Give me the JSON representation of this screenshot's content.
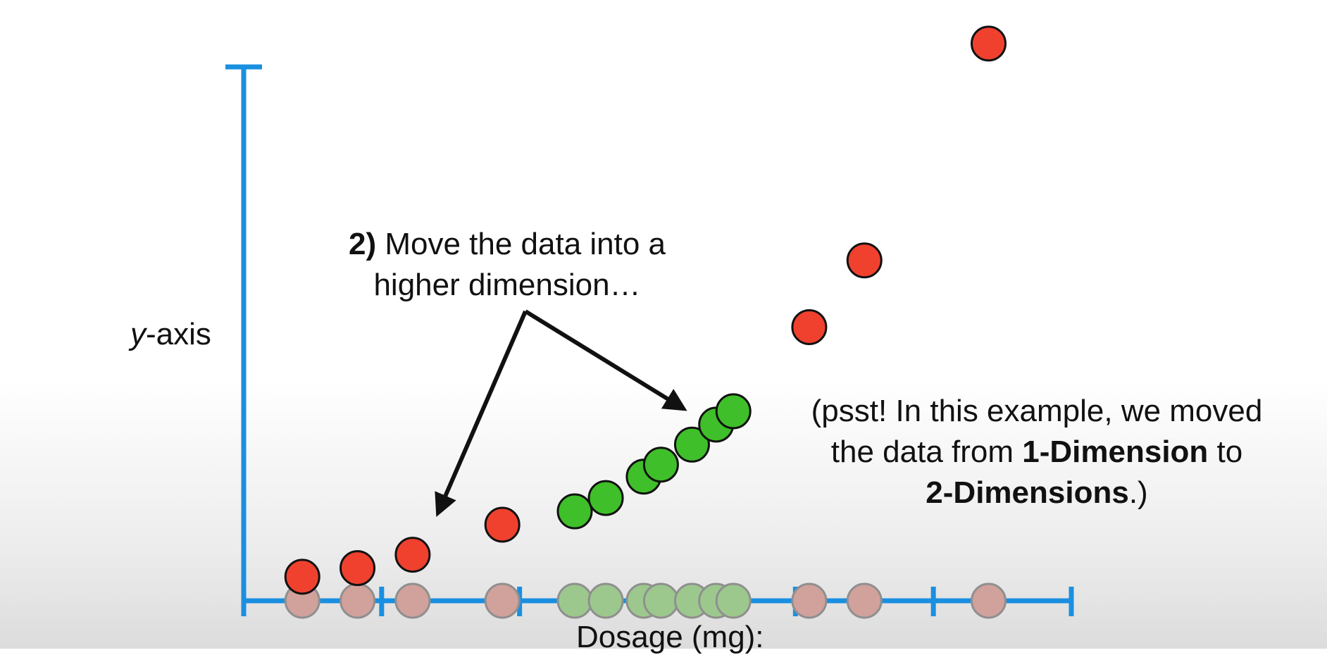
{
  "y_axis_label": {
    "italic_part": "y",
    "rest": "-axis"
  },
  "x_axis_label": "Dosage (mg):",
  "callout": {
    "number": "2)",
    "line1_rest": " Move the data into a",
    "line2": "higher dimension…"
  },
  "note": {
    "line1": "(psst! In this example, we moved",
    "line2_pre": "the data from ",
    "line2_bold": "1-Dimension",
    "line2_post": " to",
    "line3_bold": "2-Dimensions",
    "line3_post": ".)"
  },
  "colors": {
    "axis": "#1a8fe0",
    "red": "#f0412f",
    "green": "#3fbf29",
    "faded_red": "#d1a19b",
    "faded_green": "#9cc88d",
    "outline": "#111111"
  },
  "chart_data": {
    "type": "scatter",
    "title": "",
    "xlabel": "Dosage (mg):",
    "ylabel": "y-axis",
    "ticks": [
      0,
      2,
      4,
      6,
      8,
      10,
      12
    ],
    "xlim": [
      0,
      12
    ],
    "ylim": [
      0,
      8
    ],
    "one_d_points": [
      {
        "x": 0.85,
        "group": "red"
      },
      {
        "x": 1.65,
        "group": "red"
      },
      {
        "x": 2.45,
        "group": "red"
      },
      {
        "x": 3.75,
        "group": "red"
      },
      {
        "x": 4.8,
        "group": "green"
      },
      {
        "x": 5.25,
        "group": "green"
      },
      {
        "x": 5.8,
        "group": "green"
      },
      {
        "x": 6.05,
        "group": "green"
      },
      {
        "x": 6.5,
        "group": "green"
      },
      {
        "x": 6.85,
        "group": "green"
      },
      {
        "x": 7.1,
        "group": "green"
      },
      {
        "x": 8.2,
        "group": "red"
      },
      {
        "x": 9.0,
        "group": "red"
      },
      {
        "x": 10.8,
        "group": "red"
      }
    ],
    "two_d_points": [
      {
        "x": 0.85,
        "y": 0.36,
        "group": "red"
      },
      {
        "x": 1.65,
        "y": 0.49,
        "group": "red"
      },
      {
        "x": 2.45,
        "y": 0.69,
        "group": "red"
      },
      {
        "x": 3.75,
        "y": 1.14,
        "group": "red"
      },
      {
        "x": 4.8,
        "y": 1.34,
        "group": "green"
      },
      {
        "x": 5.25,
        "y": 1.54,
        "group": "green"
      },
      {
        "x": 5.8,
        "y": 1.86,
        "group": "green"
      },
      {
        "x": 6.05,
        "y": 2.04,
        "group": "green"
      },
      {
        "x": 6.5,
        "y": 2.34,
        "group": "green"
      },
      {
        "x": 6.85,
        "y": 2.64,
        "group": "green"
      },
      {
        "x": 7.1,
        "y": 2.84,
        "group": "green"
      },
      {
        "x": 8.2,
        "y": 4.1,
        "group": "red"
      },
      {
        "x": 9.0,
        "y": 5.1,
        "group": "red"
      },
      {
        "x": 10.8,
        "y": 8.35,
        "group": "red"
      }
    ]
  }
}
